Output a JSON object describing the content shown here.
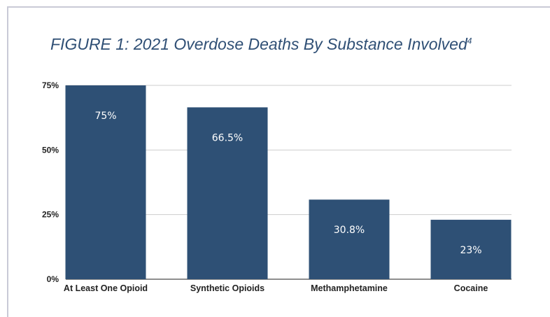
{
  "title": {
    "text": "FIGURE 1: 2021 Overdose Deaths By Substance Involved",
    "superscript": "4"
  },
  "colors": {
    "bar": "#2e5075",
    "title": "#2f4f75",
    "frame": "#c9cad6"
  },
  "chart_data": {
    "type": "bar",
    "title": "FIGURE 1: 2021 Overdose Deaths By Substance Involved",
    "categories": [
      "At Least One Opioid",
      "Synthetic Opioids",
      "Methamphetamine",
      "Cocaine"
    ],
    "values": [
      75,
      66.5,
      30.8,
      23
    ],
    "data_labels": [
      "75%",
      "66.5%",
      "30.8%",
      "23%"
    ],
    "ylim": [
      0,
      75
    ],
    "yticks": [
      0,
      25,
      50,
      75
    ],
    "ytick_labels": [
      "0%",
      "25%",
      "50%",
      "75%"
    ],
    "xlabel": "",
    "ylabel": "",
    "grid": true,
    "legend": "none"
  }
}
